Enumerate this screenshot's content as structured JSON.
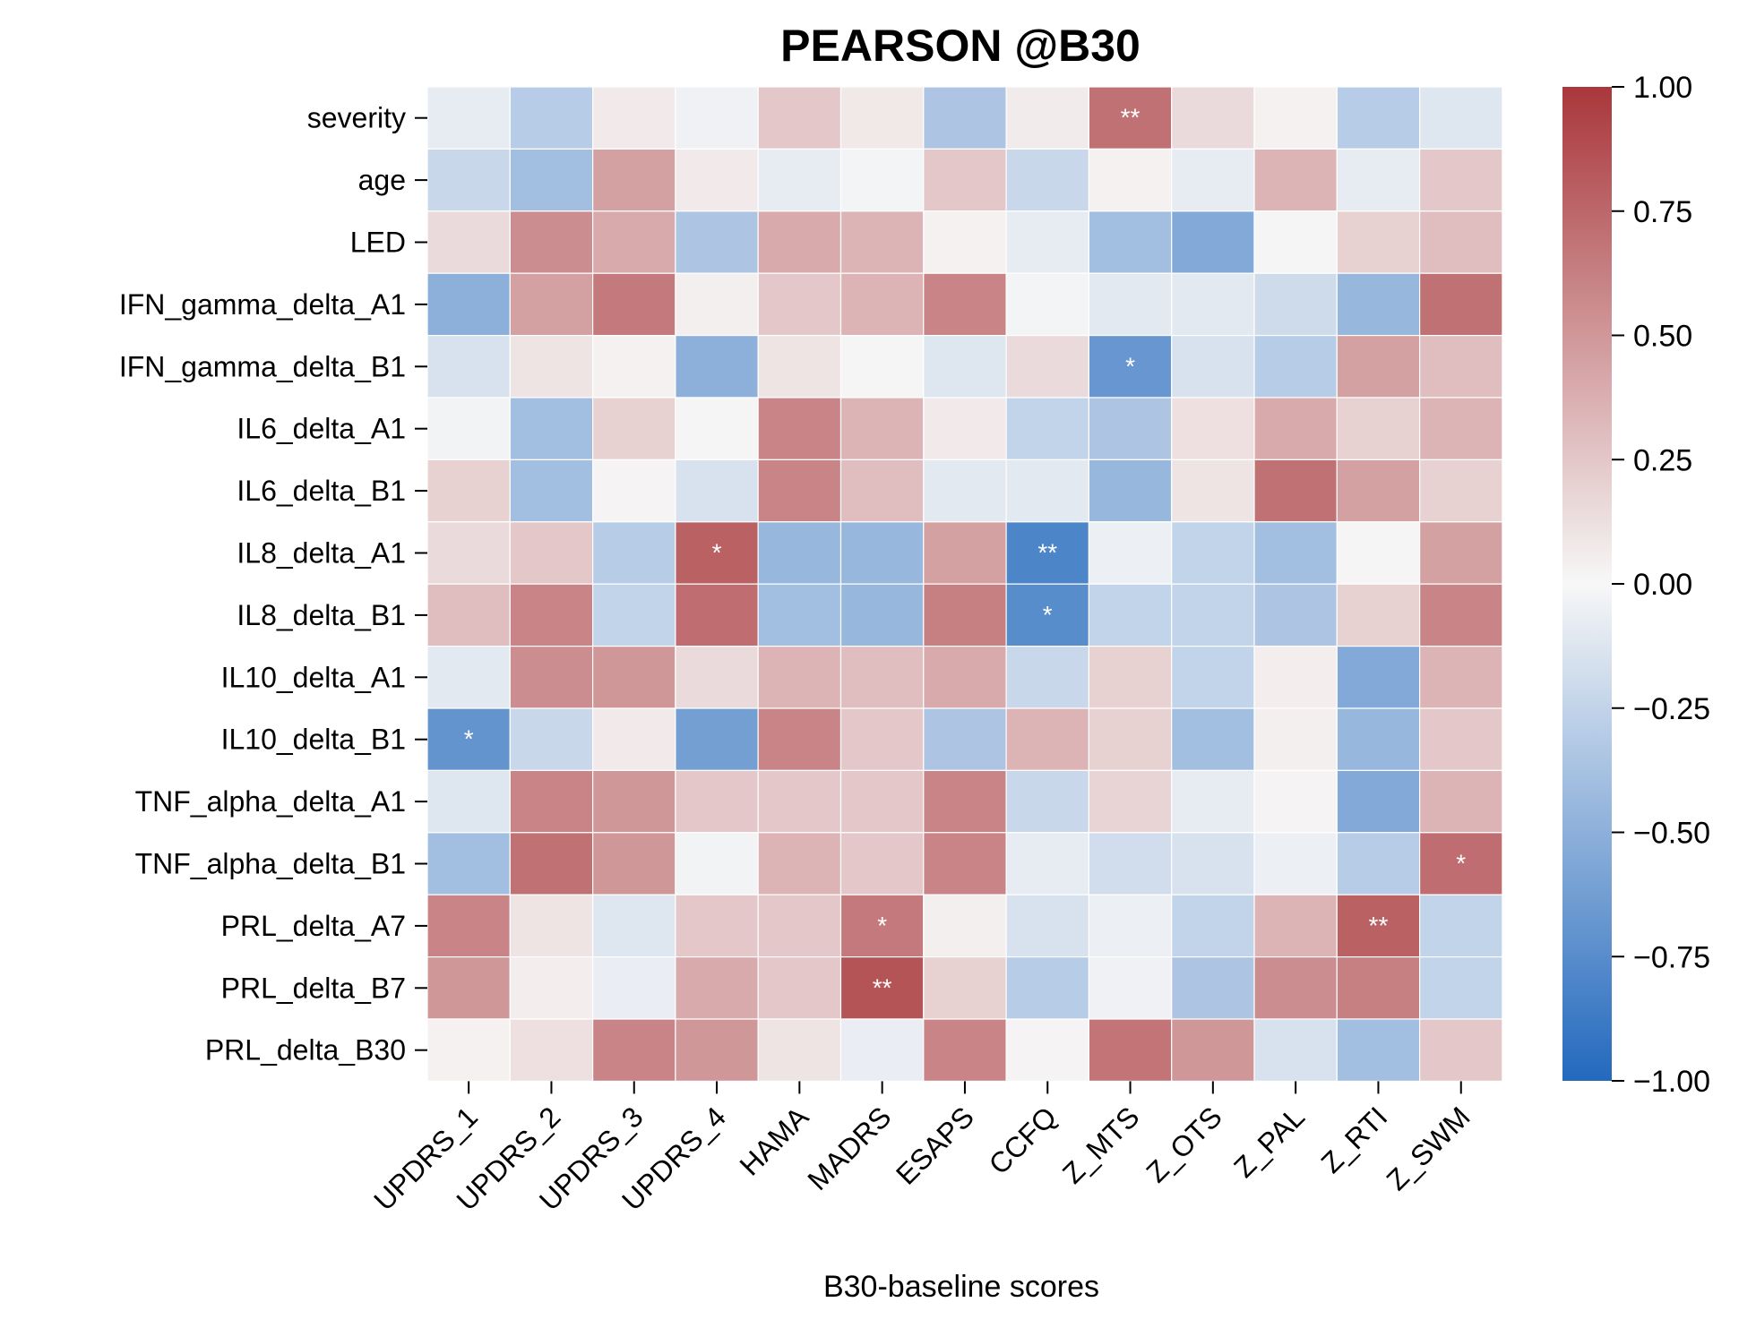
{
  "chart_data": {
    "type": "heatmap",
    "title": "PEARSON @B30",
    "xlabel": "B30-baseline scores",
    "ylabel": "",
    "columns": [
      "UPDRS_1",
      "UPDRS_2",
      "UPDRS_3",
      "UPDRS_4",
      "HAMA",
      "MADRS",
      "ESAPS",
      "CCFQ",
      "Z_MTS",
      "Z_OTS",
      "Z_PAL",
      "Z_RTI",
      "Z_SWM"
    ],
    "rows": [
      "severity",
      "age",
      "LED",
      "IFN_gamma_delta_A1",
      "IFN_gamma_delta_B1",
      "IL6_delta_A1",
      "IL6_delta_B1",
      "IL8_delta_A1",
      "IL8_delta_B1",
      "IL10_delta_A1",
      "IL10_delta_B1",
      "TNF_alpha_delta_A1",
      "TNF_alpha_delta_B1",
      "PRL_delta_A7",
      "PRL_delta_B7",
      "PRL_delta_B30"
    ],
    "values": [
      [
        -0.08,
        -0.3,
        0.07,
        -0.04,
        0.25,
        0.08,
        -0.35,
        0.06,
        0.7,
        0.15,
        0.03,
        -0.3,
        -0.12
      ],
      [
        -0.22,
        -0.4,
        0.45,
        0.07,
        -0.08,
        -0.02,
        0.25,
        -0.22,
        0.03,
        -0.08,
        0.35,
        -0.08,
        0.25
      ],
      [
        0.15,
        0.55,
        0.4,
        -0.35,
        0.4,
        0.35,
        0.03,
        -0.08,
        -0.4,
        -0.55,
        0.01,
        0.2,
        0.3
      ],
      [
        -0.5,
        0.45,
        0.65,
        0.04,
        0.25,
        0.35,
        0.6,
        -0.02,
        -0.1,
        -0.1,
        -0.2,
        -0.45,
        0.7
      ],
      [
        -0.15,
        0.1,
        0.03,
        -0.5,
        0.1,
        0.01,
        -0.12,
        0.15,
        -0.68,
        -0.15,
        -0.3,
        0.45,
        0.3
      ],
      [
        -0.03,
        -0.4,
        0.2,
        0.01,
        0.6,
        0.35,
        0.07,
        -0.25,
        -0.35,
        0.12,
        0.4,
        0.2,
        0.35
      ],
      [
        0.2,
        -0.4,
        0.02,
        -0.15,
        0.6,
        0.3,
        -0.1,
        -0.1,
        -0.45,
        0.1,
        0.7,
        0.45,
        0.2
      ],
      [
        0.15,
        0.25,
        -0.3,
        0.78,
        -0.45,
        -0.45,
        0.45,
        -0.8,
        -0.05,
        -0.25,
        -0.4,
        0.01,
        0.45
      ],
      [
        0.3,
        0.6,
        -0.25,
        0.72,
        -0.4,
        -0.45,
        0.62,
        -0.75,
        -0.25,
        -0.25,
        -0.35,
        0.2,
        0.6
      ],
      [
        -0.1,
        0.55,
        0.5,
        0.15,
        0.35,
        0.3,
        0.4,
        -0.22,
        0.2,
        -0.25,
        0.05,
        -0.55,
        0.35
      ],
      [
        -0.7,
        -0.22,
        0.07,
        -0.62,
        0.6,
        0.25,
        -0.35,
        0.35,
        0.2,
        -0.4,
        0.04,
        -0.45,
        0.25
      ],
      [
        -0.12,
        0.6,
        0.5,
        0.25,
        0.25,
        0.25,
        0.6,
        -0.22,
        0.18,
        -0.08,
        0.02,
        -0.55,
        0.35
      ],
      [
        -0.4,
        0.7,
        0.5,
        -0.03,
        0.35,
        0.25,
        0.6,
        -0.08,
        -0.18,
        -0.15,
        -0.05,
        -0.3,
        0.72
      ],
      [
        0.6,
        0.1,
        -0.12,
        0.25,
        0.25,
        0.65,
        0.04,
        -0.15,
        -0.05,
        -0.25,
        0.35,
        0.78,
        -0.25
      ],
      [
        0.5,
        0.05,
        -0.06,
        0.4,
        0.25,
        0.85,
        0.2,
        -0.3,
        -0.04,
        -0.35,
        0.55,
        0.62,
        -0.25
      ],
      [
        0.03,
        0.12,
        0.6,
        0.5,
        0.1,
        -0.06,
        0.6,
        0.02,
        0.68,
        0.5,
        -0.15,
        -0.4,
        0.25
      ]
    ],
    "significance": [
      {
        "row": "severity",
        "column": "Z_MTS",
        "label": "**"
      },
      {
        "row": "IFN_gamma_delta_B1",
        "column": "Z_MTS",
        "label": "*"
      },
      {
        "row": "IL8_delta_A1",
        "column": "UPDRS_4",
        "label": "*"
      },
      {
        "row": "IL8_delta_A1",
        "column": "CCFQ",
        "label": "**"
      },
      {
        "row": "IL8_delta_B1",
        "column": "CCFQ",
        "label": "*"
      },
      {
        "row": "IL10_delta_B1",
        "column": "UPDRS_1",
        "label": "*"
      },
      {
        "row": "TNF_alpha_delta_B1",
        "column": "Z_SWM",
        "label": "*"
      },
      {
        "row": "PRL_delta_A7",
        "column": "MADRS",
        "label": "*"
      },
      {
        "row": "PRL_delta_A7",
        "column": "Z_RTI",
        "label": "**"
      },
      {
        "row": "PRL_delta_B7",
        "column": "MADRS",
        "label": "**"
      }
    ],
    "colorbar": {
      "range": [
        -1.0,
        1.0
      ],
      "ticks": [
        -1.0,
        -0.75,
        -0.5,
        -0.25,
        0.0,
        0.25,
        0.5,
        0.75,
        1.0
      ],
      "tick_labels": [
        "−1.00",
        "−0.75",
        "−0.50",
        "−0.25",
        "0.00",
        "0.25",
        "0.50",
        "0.75",
        "1.00"
      ],
      "colormap": "vlag",
      "low_color": "#2369bd",
      "mid_color": "#f7f7f7",
      "high_color": "#a9373b"
    }
  }
}
